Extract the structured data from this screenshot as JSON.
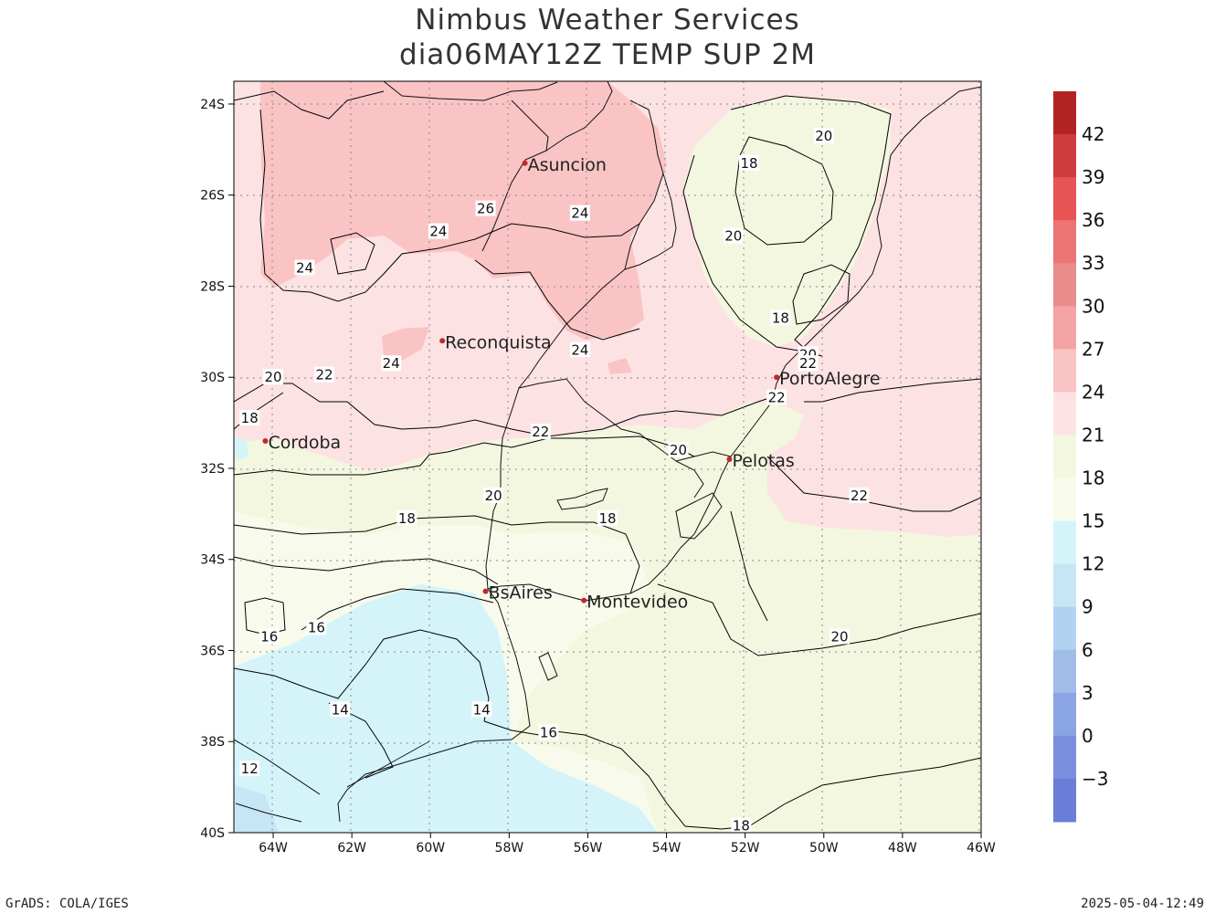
{
  "header": {
    "line1": "Nimbus Weather Services",
    "line2": "dia06MAY12Z TEMP SUP 2M"
  },
  "map": {
    "lat_labels": [
      "24S",
      "26S",
      "28S",
      "30S",
      "32S",
      "34S",
      "36S",
      "38S",
      "40S"
    ],
    "lon_labels": [
      "64W",
      "62W",
      "60W",
      "58W",
      "56W",
      "54W",
      "52W",
      "50W",
      "48W",
      "46W"
    ],
    "cities": [
      {
        "name": "Asuncion",
        "lon": -57.6,
        "lat": -25.3
      },
      {
        "name": "Reconquista",
        "lon": -59.7,
        "lat": -29.2
      },
      {
        "name": "PortoAlegre",
        "lon": -51.2,
        "lat": -30.0
      },
      {
        "name": "Cordoba",
        "lon": -64.2,
        "lat": -31.4
      },
      {
        "name": "Pelotas",
        "lon": -52.4,
        "lat": -31.8
      },
      {
        "name": "BsAires",
        "lon": -58.6,
        "lat": -34.7
      },
      {
        "name": "Montevideo",
        "lon": -56.1,
        "lat": -34.9
      }
    ],
    "contour_labels": [
      {
        "text": "20",
        "lon": -50.0,
        "lat": -24.7
      },
      {
        "text": "18",
        "lon": -51.9,
        "lat": -25.3
      },
      {
        "text": "26",
        "lon": -58.6,
        "lat": -26.3
      },
      {
        "text": "24",
        "lon": -56.2,
        "lat": -26.4
      },
      {
        "text": "24",
        "lon": -59.8,
        "lat": -26.8
      },
      {
        "text": "20",
        "lon": -52.3,
        "lat": -26.9
      },
      {
        "text": "24",
        "lon": -63.2,
        "lat": -27.6
      },
      {
        "text": "18",
        "lon": -51.1,
        "lat": -28.7
      },
      {
        "text": "24",
        "lon": -56.2,
        "lat": -29.4
      },
      {
        "text": "20",
        "lon": -50.4,
        "lat": -29.5
      },
      {
        "text": "22",
        "lon": -50.4,
        "lat": -29.7
      },
      {
        "text": "24",
        "lon": -61.0,
        "lat": -29.7
      },
      {
        "text": "20",
        "lon": -64.0,
        "lat": -30.0
      },
      {
        "text": "22",
        "lon": -62.7,
        "lat": -29.95
      },
      {
        "text": "22",
        "lon": -51.2,
        "lat": -30.45
      },
      {
        "text": "18",
        "lon": -64.6,
        "lat": -30.9
      },
      {
        "text": "22",
        "lon": -57.2,
        "lat": -31.2
      },
      {
        "text": "20",
        "lon": -53.7,
        "lat": -31.6
      },
      {
        "text": "22",
        "lon": -49.1,
        "lat": -32.6
      },
      {
        "text": "20",
        "lon": -58.4,
        "lat": -32.6
      },
      {
        "text": "18",
        "lon": -60.6,
        "lat": -33.1
      },
      {
        "text": "18",
        "lon": -55.5,
        "lat": -33.1
      },
      {
        "text": "16",
        "lon": -62.9,
        "lat": -35.5
      },
      {
        "text": "16",
        "lon": -64.1,
        "lat": -35.7
      },
      {
        "text": "20",
        "lon": -49.6,
        "lat": -35.7
      },
      {
        "text": "14",
        "lon": -62.3,
        "lat": -37.3
      },
      {
        "text": "14",
        "lon": -58.7,
        "lat": -37.3
      },
      {
        "text": "16",
        "lon": -57.0,
        "lat": -37.8
      },
      {
        "text": "12",
        "lon": -64.6,
        "lat": -38.6
      },
      {
        "text": "18",
        "lon": -52.1,
        "lat": -39.85
      }
    ]
  },
  "colorbar": {
    "labels": [
      "42",
      "39",
      "36",
      "33",
      "30",
      "27",
      "24",
      "21",
      "18",
      "15",
      "12",
      "9",
      "6",
      "3",
      "0",
      "−3"
    ],
    "colors": [
      "#b22424",
      "#cf3c3c",
      "#e85454",
      "#ec7474",
      "#e88c8c",
      "#f4a4a4",
      "#fac4c4",
      "#fde2e4",
      "#f3f7df",
      "#f8fbec",
      "#d4f4fa",
      "#c6e6f6",
      "#b2d2f2",
      "#a2bcea",
      "#8aa4e4",
      "#7c8ee0",
      "#6a7ed8"
    ]
  },
  "footer": {
    "left": "GrADS: COLA/IGES",
    "right": "2025-05-04-12:49"
  }
}
